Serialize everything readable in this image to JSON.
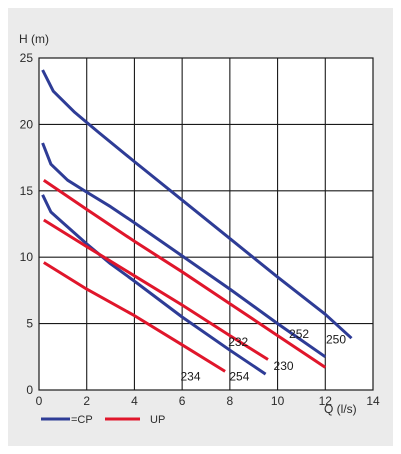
{
  "chart_data": {
    "type": "line",
    "ylabel": "H (m)",
    "xlabel": "Q (l/s)",
    "xlim": [
      0,
      14
    ],
    "ylim": [
      0,
      25
    ],
    "xticks": [
      "0",
      "2",
      "4",
      "6",
      "8",
      "10",
      "12",
      "14"
    ],
    "yticks": [
      "0",
      "5",
      "10",
      "15",
      "20",
      "25"
    ],
    "grid": true,
    "colors": {
      "blue": "#2e3c96",
      "red": "#e0162b"
    },
    "legend": [
      {
        "text": "=CP",
        "color": "blue"
      },
      {
        "text": "UP",
        "color": "red"
      }
    ],
    "series": [
      {
        "name": "250",
        "color": "blue",
        "x": [
          0.15,
          0.6,
          1.5,
          2.5,
          4,
          6,
          8,
          10,
          12,
          13.1
        ],
        "y": [
          24.1,
          22.5,
          20.9,
          19.4,
          17.2,
          14.3,
          11.4,
          8.5,
          5.7,
          3.9
        ]
      },
      {
        "name": "252",
        "color": "blue",
        "x": [
          0.15,
          0.5,
          1.2,
          2,
          3,
          4,
          6,
          8,
          10,
          12
        ],
        "y": [
          18.6,
          17.0,
          15.8,
          14.9,
          13.8,
          12.6,
          10.1,
          7.6,
          5.0,
          2.5
        ]
      },
      {
        "name": "254",
        "color": "blue",
        "x": [
          0.15,
          0.5,
          1,
          2,
          3,
          4,
          6,
          8,
          9.5
        ],
        "y": [
          14.7,
          13.4,
          12.6,
          11.0,
          9.5,
          8.2,
          5.5,
          3.0,
          1.2
        ]
      },
      {
        "name": "230",
        "color": "red",
        "x": [
          0.2,
          2,
          4,
          6,
          8,
          10,
          12
        ],
        "y": [
          15.8,
          13.6,
          11.2,
          8.9,
          6.5,
          4.1,
          1.7
        ]
      },
      {
        "name": "232",
        "color": "red",
        "x": [
          0.2,
          2,
          4,
          6,
          8,
          9.6
        ],
        "y": [
          12.8,
          10.8,
          8.6,
          6.4,
          4.1,
          2.3
        ]
      },
      {
        "name": "234",
        "color": "red",
        "x": [
          0.2,
          2,
          4,
          6,
          7.8
        ],
        "y": [
          9.6,
          7.6,
          5.6,
          3.4,
          1.4
        ]
      }
    ],
    "curve_labels": [
      {
        "text": "250",
        "x": 12.45,
        "y": 3.8
      },
      {
        "text": "252",
        "x": 10.9,
        "y": 4.2
      },
      {
        "text": "254",
        "x": 8.4,
        "y": 1.0
      },
      {
        "text": "230",
        "x": 10.25,
        "y": 1.8
      },
      {
        "text": "232",
        "x": 8.35,
        "y": 3.6
      },
      {
        "text": "234",
        "x": 6.35,
        "y": 1.0
      }
    ]
  }
}
